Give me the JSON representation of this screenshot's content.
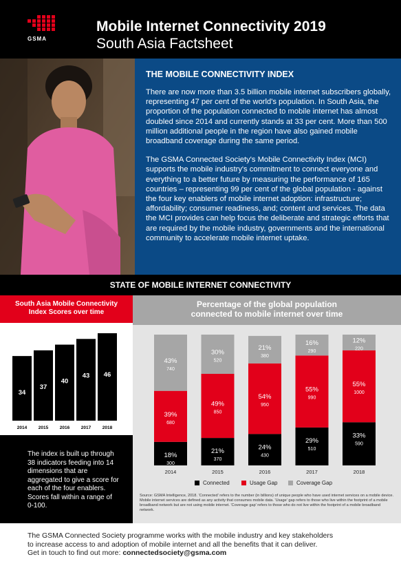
{
  "header": {
    "logo_text": "GSMA",
    "title": "Mobile Internet Connectivity 2019",
    "subtitle": "South Asia Factsheet"
  },
  "index_section": {
    "title": "THE MOBILE CONNECTIVITY INDEX",
    "paragraphs": [
      "There are now more than 3.5 billion mobile internet subscribers globally, representing 47 per cent of the world's population. In South Asia, the proportion of the population connected to mobile internet has almost doubled since 2014 and currently stands at 33 per cent. More than 500 million additional people in the region have also gained mobile broadband coverage during the same period.",
      "The GSMA Connected Society's Mobile Connectivity Index (MCI) supports the mobile industry's commitment to connect everyone and everything to a better future by measuring the performance of 165 countries – representing 99 per cent of the global population - against the four key enablers of mobile internet adoption: infrastructure; affordability; consumer readiness, and; content and services. The data the MCI provides can help focus the deliberate and strategic efforts that are required by the mobile industry, governments and the international community to accelerate mobile internet uptake."
    ]
  },
  "state_title": "STATE OF MOBILE INTERNET CONNECTIVITY",
  "left_chart": {
    "title_lines": [
      "South Asia Mobile Connectivity",
      "Index Scores over time"
    ],
    "note": "The index is built up through 38 indicators feeding into 14 dimensions that are aggregated to give a score for each of the four enablers. Scores fall within a range of 0-100."
  },
  "right_chart": {
    "title_lines": [
      "Percentage of the global population",
      "connected to mobile internet over time"
    ],
    "legend": [
      "Connected",
      "Usage Gap",
      "Coverage Gap"
    ],
    "source": "Source: GSMA Intelligence, 2018. 'Connected' refers to the number (in billions) of unique people who have used internet services on a mobile device. Mobile internet services are defined as any activity that consumes mobile data. 'Usage' gap refers to those who live within the footprint of a mobile broadband network but are not using mobile internet. 'Coverage gap' refers to those who do not live within the footprint of a mobile broadband network."
  },
  "colors": {
    "red": "#e2001a",
    "blue": "#0b4a86",
    "black": "#000000",
    "gray": "#a6a6a6"
  },
  "chart_data": [
    {
      "type": "bar",
      "title": "South Asia Mobile Connectivity Index Scores over time",
      "categories": [
        "2014",
        "2015",
        "2016",
        "2017",
        "2018"
      ],
      "values": [
        34,
        37,
        40,
        43,
        46
      ],
      "ylim": [
        0,
        46
      ]
    },
    {
      "type": "bar",
      "stacked": true,
      "title": "Percentage of the global population connected to mobile internet over time",
      "categories": [
        "2014",
        "2015",
        "2016",
        "2017",
        "2018"
      ],
      "series": [
        {
          "name": "Connected",
          "percent": [
            18,
            21,
            24,
            29,
            33
          ],
          "values": [
            300,
            370,
            430,
            510,
            590
          ]
        },
        {
          "name": "Usage Gap",
          "percent": [
            39,
            49,
            54,
            55,
            55
          ],
          "values": [
            680,
            850,
            950,
            990,
            1000
          ]
        },
        {
          "name": "Coverage Gap",
          "percent": [
            43,
            30,
            21,
            16,
            12
          ],
          "values": [
            740,
            520,
            380,
            290,
            220
          ]
        }
      ]
    }
  ],
  "footer": {
    "lines": [
      "The GSMA Connected Society programme works with the mobile industry and key stakeholders",
      "to increase access to and adoption of mobile internet and all the benefits that it can deliver."
    ],
    "contact_prefix": "Get in touch to find out more: ",
    "email": "connectedsociety@gsma.com"
  }
}
